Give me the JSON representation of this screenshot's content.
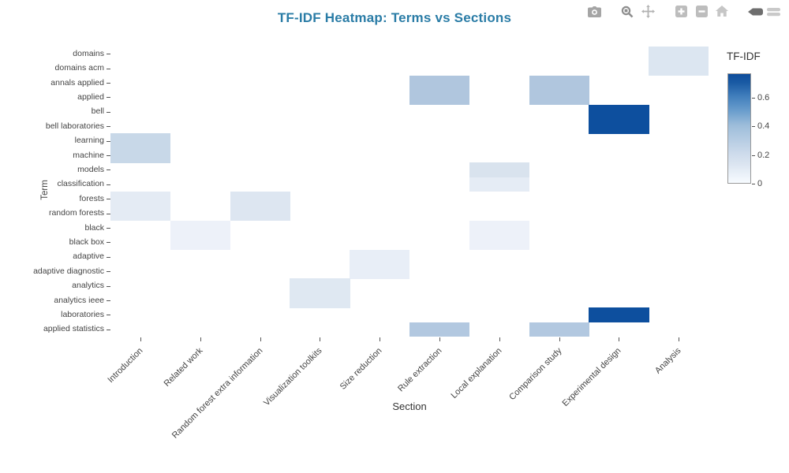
{
  "title": "TF-IDF Heatmap: Terms vs Sections",
  "title_color": "#2a7ca6",
  "modebar": {
    "icons": [
      "camera",
      "zoom",
      "pan",
      "zoom-in",
      "zoom-out",
      "home",
      "plotly-logo"
    ],
    "icon_color": "#a5a5a5",
    "logo_dark_color": "#6e6e6e",
    "logo_light_color": "#c9c9c9"
  },
  "chart_data": {
    "type": "heatmap",
    "title": "TF-IDF Heatmap: Terms vs Sections",
    "xlabel": "Section",
    "ylabel": "Term",
    "x_categories": [
      "Introduction",
      "Related work",
      "Random forest extra information",
      "Visualization toolkits",
      "Size reduction",
      "Rule extraction",
      "Local explanation",
      "Comparison study",
      "Experimental design",
      "Analysis"
    ],
    "y_categories": [
      "domains",
      "domains acm",
      "annals applied",
      "applied",
      "bell",
      "bell laboratories",
      "learning",
      "machine",
      "models",
      "classification",
      "forests",
      "random forests",
      "black",
      "black box",
      "adaptive",
      "adaptive diagnostic",
      "analytics",
      "analytics ieee",
      "laboratories",
      "applied statistics"
    ],
    "default_value": 0,
    "default_color": "#ffffff",
    "colorbar": {
      "title": "TF-IDF",
      "tick_labels": [
        "0",
        "0.2",
        "0.4",
        "0.6"
      ],
      "tick_values": [
        0,
        0.2,
        0.4,
        0.6
      ],
      "min": 0,
      "max": 0.77,
      "colorscale": "Blues",
      "low_color": "#f7fbff",
      "high_color": "#0d4c9b"
    },
    "cells": [
      {
        "term": "domains",
        "section": "Analysis",
        "value": 0.12,
        "color": "#dce6f1"
      },
      {
        "term": "domains acm",
        "section": "Analysis",
        "value": 0.12,
        "color": "#dce6f1"
      },
      {
        "term": "annals applied",
        "section": "Rule extraction",
        "value": 0.3,
        "color": "#b0c6de"
      },
      {
        "term": "annals applied",
        "section": "Comparison study",
        "value": 0.3,
        "color": "#b0c6de"
      },
      {
        "term": "applied",
        "section": "Rule extraction",
        "value": 0.3,
        "color": "#b0c6de"
      },
      {
        "term": "applied",
        "section": "Comparison study",
        "value": 0.3,
        "color": "#b0c6de"
      },
      {
        "term": "bell",
        "section": "Experimental design",
        "value": 0.75,
        "color": "#0d4f9e"
      },
      {
        "term": "bell laboratories",
        "section": "Experimental design",
        "value": 0.75,
        "color": "#0d4f9e"
      },
      {
        "term": "learning",
        "section": "Introduction",
        "value": 0.2,
        "color": "#c8d8e8"
      },
      {
        "term": "machine",
        "section": "Introduction",
        "value": 0.2,
        "color": "#c8d8e8"
      },
      {
        "term": "models",
        "section": "Local explanation",
        "value": 0.13,
        "color": "#d9e3ee"
      },
      {
        "term": "classification",
        "section": "Local explanation",
        "value": 0.08,
        "color": "#e5ecf5"
      },
      {
        "term": "forests",
        "section": "Introduction",
        "value": 0.08,
        "color": "#e4ebf4"
      },
      {
        "term": "forests",
        "section": "Random forest extra information",
        "value": 0.12,
        "color": "#dde6f1"
      },
      {
        "term": "random forests",
        "section": "Introduction",
        "value": 0.08,
        "color": "#e4ebf4"
      },
      {
        "term": "random forests",
        "section": "Random forest extra information",
        "value": 0.12,
        "color": "#dde6f1"
      },
      {
        "term": "black",
        "section": "Related work",
        "value": 0.04,
        "color": "#edf1f9"
      },
      {
        "term": "black",
        "section": "Local explanation",
        "value": 0.04,
        "color": "#edf1f9"
      },
      {
        "term": "black box",
        "section": "Related work",
        "value": 0.04,
        "color": "#edf1f9"
      },
      {
        "term": "black box",
        "section": "Local explanation",
        "value": 0.04,
        "color": "#edf1f9"
      },
      {
        "term": "adaptive",
        "section": "Size reduction",
        "value": 0.06,
        "color": "#e8eef7"
      },
      {
        "term": "adaptive diagnostic",
        "section": "Size reduction",
        "value": 0.06,
        "color": "#e8eef7"
      },
      {
        "term": "analytics",
        "section": "Visualization toolkits",
        "value": 0.11,
        "color": "#dfe8f2"
      },
      {
        "term": "analytics ieee",
        "section": "Visualization toolkits",
        "value": 0.11,
        "color": "#dfe8f2"
      },
      {
        "term": "laboratories",
        "section": "Experimental design",
        "value": 0.75,
        "color": "#0d4f9e"
      },
      {
        "term": "applied statistics",
        "section": "Rule extraction",
        "value": 0.28,
        "color": "#b2c8e0"
      },
      {
        "term": "applied statistics",
        "section": "Comparison study",
        "value": 0.28,
        "color": "#b2c8e0"
      }
    ]
  }
}
